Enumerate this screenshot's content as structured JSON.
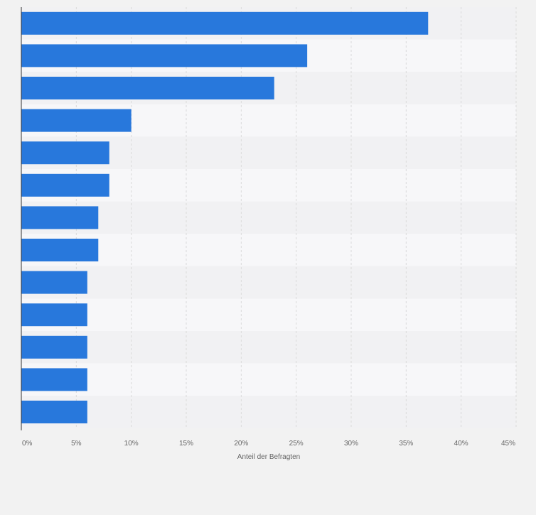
{
  "colors": {
    "page_background": "#f2f2f2",
    "band_light": "#f7f7f9",
    "band_dark": "#f1f1f3",
    "bar": "#2878dc",
    "gridline": "#dadada",
    "axis_line": "#333333",
    "tick_text": "#666666"
  },
  "chart_data": {
    "type": "bar",
    "orientation": "horizontal",
    "title": "",
    "xlabel": "Anteil der Befragten",
    "ylabel": "",
    "xlim": [
      0,
      45
    ],
    "x_ticks": [
      0,
      5,
      10,
      15,
      20,
      25,
      30,
      35,
      40,
      45
    ],
    "x_tick_labels": [
      "0%",
      "5%",
      "10%",
      "15%",
      "20%",
      "25%",
      "30%",
      "35%",
      "40%",
      "45%"
    ],
    "grid": "vertical dashed",
    "legend": "none",
    "values": [
      37,
      26,
      23,
      10,
      8,
      8,
      7,
      7,
      6,
      6,
      6,
      6,
      6
    ],
    "unit": "%"
  }
}
